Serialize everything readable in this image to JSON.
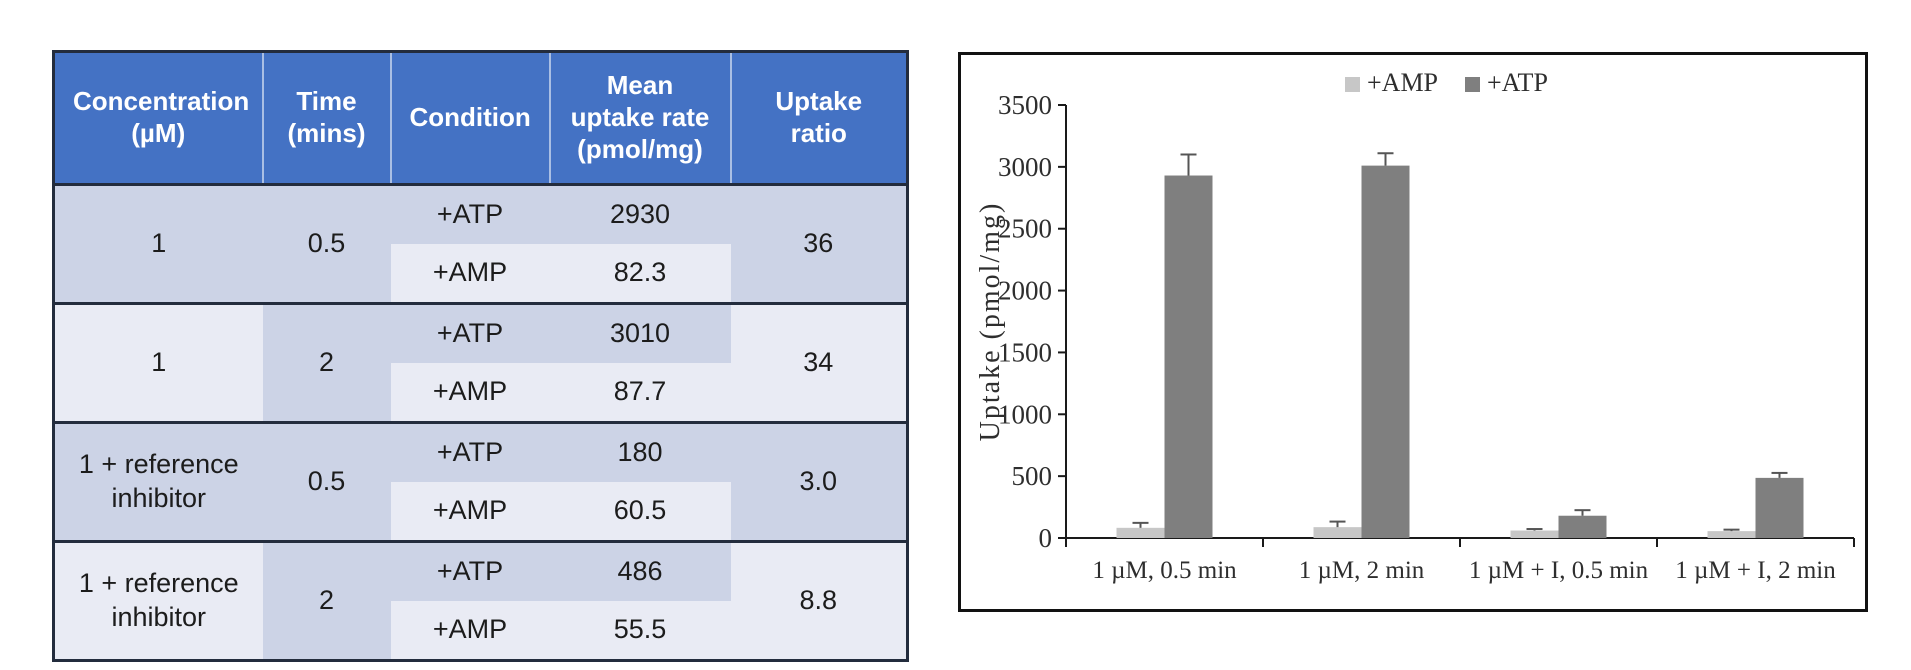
{
  "table": {
    "headers": [
      "Concentration (µM)",
      "Time (mins)",
      "Condition",
      "Mean uptake rate (pmol/mg)",
      "Uptake ratio"
    ],
    "groups": [
      {
        "concentration": "1",
        "time": "0.5",
        "rows": [
          {
            "condition": "+ATP",
            "rate": "2930"
          },
          {
            "condition": "+AMP",
            "rate": "82.3"
          }
        ],
        "ratio": "36"
      },
      {
        "concentration": "1",
        "time": "2",
        "rows": [
          {
            "condition": "+ATP",
            "rate": "3010"
          },
          {
            "condition": "+AMP",
            "rate": "87.7"
          }
        ],
        "ratio": "34"
      },
      {
        "concentration": "1 + reference inhibitor",
        "time": "0.5",
        "rows": [
          {
            "condition": "+ATP",
            "rate": "180"
          },
          {
            "condition": "+AMP",
            "rate": "60.5"
          }
        ],
        "ratio": "3.0"
      },
      {
        "concentration": "1 + reference inhibitor",
        "time": "2",
        "rows": [
          {
            "condition": "+ATP",
            "rate": "486"
          },
          {
            "condition": "+AMP",
            "rate": "55.5"
          }
        ],
        "ratio": "8.8"
      }
    ]
  },
  "chart_data": {
    "type": "bar",
    "title": "",
    "categories": [
      "1 µM, 0.5 min",
      "1 µM, 2 min",
      "1 µM + I, 0.5 min",
      "1 µM + I, 2 min"
    ],
    "series": [
      {
        "name": "+AMP",
        "values": [
          82.3,
          87.7,
          60.5,
          55.5
        ],
        "errors": [
          40,
          45,
          12,
          12
        ],
        "color": "#c7c7c7"
      },
      {
        "name": "+ATP",
        "values": [
          2930,
          3010,
          180,
          486
        ],
        "errors": [
          170,
          100,
          45,
          40
        ],
        "color": "#7f7f7f"
      }
    ],
    "xlabel": "",
    "ylabel": "Uptake (pmol/mg)",
    "ylim": [
      0,
      3500
    ],
    "ytick_step": 500,
    "legend_position": "top-center",
    "grid": false,
    "error_bar_color": "#555555",
    "axis_color": "#1a1a1a"
  },
  "colors": {
    "header_blue": "#4472c4",
    "band_mid": "#ccd3e6",
    "band_light": "#e9ebf4",
    "table_border": "#232c3d"
  }
}
